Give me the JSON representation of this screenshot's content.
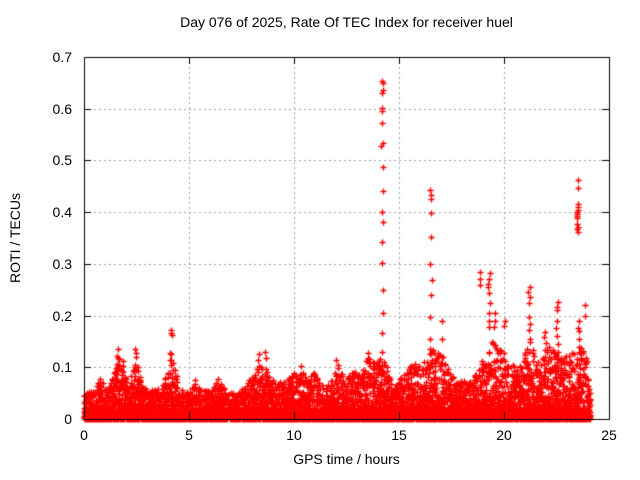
{
  "chart_data": {
    "type": "scatter",
    "title": "Day 076 of 2025, Rate Of TEC Index for receiver huel",
    "xlabel": "GPS time / hours",
    "ylabel": "ROTI / TECUs",
    "xlim": [
      0,
      25
    ],
    "ylim": [
      0,
      0.7
    ],
    "xticks": [
      0,
      5,
      10,
      15,
      20,
      25
    ],
    "yticks": [
      0,
      0.1,
      0.2,
      0.3,
      0.4,
      0.5,
      0.6,
      0.7
    ],
    "grid": true,
    "legend": "none",
    "marker": "plus",
    "marker_color": "#ff0000",
    "axis_color": "#000000",
    "grid_color": "#a5a5a5",
    "background_color": "#ffffff",
    "seed": 76,
    "x_end": 24.1,
    "band_envelope": [
      [
        0,
        0.05
      ],
      [
        0.4,
        0.055
      ],
      [
        0.8,
        0.075
      ],
      [
        1.1,
        0.06
      ],
      [
        1.4,
        0.09
      ],
      [
        1.6,
        0.12
      ],
      [
        1.8,
        0.1
      ],
      [
        2.1,
        0.07
      ],
      [
        2.45,
        0.11
      ],
      [
        2.6,
        0.09
      ],
      [
        2.9,
        0.06
      ],
      [
        3.3,
        0.055
      ],
      [
        3.7,
        0.065
      ],
      [
        4.0,
        0.1
      ],
      [
        4.15,
        0.15
      ],
      [
        4.35,
        0.09
      ],
      [
        4.6,
        0.06
      ],
      [
        5.0,
        0.055
      ],
      [
        5.3,
        0.07
      ],
      [
        5.6,
        0.055
      ],
      [
        6.0,
        0.055
      ],
      [
        6.35,
        0.075
      ],
      [
        6.6,
        0.065
      ],
      [
        7.0,
        0.05
      ],
      [
        7.4,
        0.05
      ],
      [
        7.8,
        0.075
      ],
      [
        8.1,
        0.085
      ],
      [
        8.35,
        0.105
      ],
      [
        8.6,
        0.1
      ],
      [
        8.9,
        0.08
      ],
      [
        9.2,
        0.07
      ],
      [
        9.5,
        0.08
      ],
      [
        9.8,
        0.085
      ],
      [
        10.1,
        0.09
      ],
      [
        10.35,
        0.095
      ],
      [
        10.6,
        0.085
      ],
      [
        10.9,
        0.09
      ],
      [
        11.2,
        0.07
      ],
      [
        11.5,
        0.065
      ],
      [
        11.8,
        0.075
      ],
      [
        12.1,
        0.1
      ],
      [
        12.4,
        0.08
      ],
      [
        12.7,
        0.09
      ],
      [
        13.0,
        0.095
      ],
      [
        13.3,
        0.11
      ],
      [
        13.6,
        0.12
      ],
      [
        13.9,
        0.11
      ],
      [
        14.2,
        0.12
      ],
      [
        14.5,
        0.09
      ],
      [
        14.8,
        0.07
      ],
      [
        15.1,
        0.08
      ],
      [
        15.4,
        0.095
      ],
      [
        15.7,
        0.11
      ],
      [
        16.0,
        0.1
      ],
      [
        16.3,
        0.12
      ],
      [
        16.55,
        0.135
      ],
      [
        16.9,
        0.13
      ],
      [
        17.15,
        0.12
      ],
      [
        17.4,
        0.09
      ],
      [
        17.7,
        0.07
      ],
      [
        18.0,
        0.075
      ],
      [
        18.3,
        0.07
      ],
      [
        18.6,
        0.09
      ],
      [
        18.9,
        0.11
      ],
      [
        19.2,
        0.13
      ],
      [
        19.45,
        0.15
      ],
      [
        19.7,
        0.14
      ],
      [
        20.0,
        0.13
      ],
      [
        20.3,
        0.12
      ],
      [
        20.6,
        0.1
      ],
      [
        20.9,
        0.12
      ],
      [
        21.2,
        0.15
      ],
      [
        21.5,
        0.12
      ],
      [
        21.8,
        0.13
      ],
      [
        22.1,
        0.14
      ],
      [
        22.4,
        0.14
      ],
      [
        22.7,
        0.13
      ],
      [
        23.0,
        0.12
      ],
      [
        23.3,
        0.13
      ],
      [
        23.6,
        0.14
      ],
      [
        23.9,
        0.13
      ],
      [
        24.0,
        0.08
      ],
      [
        24.1,
        0.03
      ]
    ],
    "spikes": [
      {
        "x": 0.8,
        "y": [
          0.078,
          0.072
        ]
      },
      {
        "x": 1.6,
        "y": [
          0.135,
          0.122,
          0.118,
          0.105
        ]
      },
      {
        "x": 1.8,
        "y": [
          0.112,
          0.102
        ]
      },
      {
        "x": 2.45,
        "y": [
          0.135,
          0.128,
          0.12
        ]
      },
      {
        "x": 4.15,
        "y": [
          0.172,
          0.166,
          0.162,
          0.128,
          0.115
        ]
      },
      {
        "x": 5.3,
        "y": [
          0.076
        ]
      },
      {
        "x": 6.35,
        "y": [
          0.078,
          0.07
        ]
      },
      {
        "x": 8.3,
        "y": [
          0.125,
          0.115
        ]
      },
      {
        "x": 8.6,
        "y": [
          0.13,
          0.118
        ]
      },
      {
        "x": 10.35,
        "y": [
          0.102
        ]
      },
      {
        "x": 12.05,
        "y": [
          0.115,
          0.105
        ]
      },
      {
        "x": 13.5,
        "y": [
          0.128,
          0.118
        ]
      },
      {
        "x": 14.2,
        "y": [
          0.654,
          0.65,
          0.637,
          0.63,
          0.601,
          0.596,
          0.572,
          0.533,
          0.528,
          0.487,
          0.441,
          0.401,
          0.38,
          0.343,
          0.302,
          0.25,
          0.205,
          0.166,
          0.13,
          0.105
        ]
      },
      {
        "x": 16.5,
        "y": [
          0.443,
          0.433,
          0.425,
          0.398,
          0.352,
          0.3,
          0.268,
          0.24,
          0.198,
          0.155,
          0.135,
          0.125
        ]
      },
      {
        "x": 17.05,
        "y": [
          0.19,
          0.155
        ]
      },
      {
        "x": 18.85,
        "y": [
          0.285,
          0.27,
          0.26
        ]
      },
      {
        "x": 19.3,
        "y": [
          0.283,
          0.27,
          0.262,
          0.255,
          0.244,
          0.225,
          0.205,
          0.19,
          0.178
        ]
      },
      {
        "x": 19.55,
        "y": [
          0.205,
          0.19,
          0.178
        ]
      },
      {
        "x": 20.0,
        "y": [
          0.19,
          0.18
        ]
      },
      {
        "x": 21.2,
        "y": [
          0.255,
          0.245,
          0.235,
          0.224,
          0.197,
          0.184,
          0.172,
          0.155
        ]
      },
      {
        "x": 21.95,
        "y": [
          0.168,
          0.158,
          0.146,
          0.134
        ]
      },
      {
        "x": 22.5,
        "y": [
          0.227,
          0.216,
          0.21,
          0.19,
          0.176,
          0.16,
          0.145
        ]
      },
      {
        "x": 23.5,
        "y": [
          0.462,
          0.447,
          0.415,
          0.41,
          0.405,
          0.4,
          0.397,
          0.392,
          0.388,
          0.378,
          0.372,
          0.367,
          0.362,
          0.176
        ]
      },
      {
        "x": 23.6,
        "y": [
          0.19,
          0.17,
          0.155,
          0.14,
          0.13
        ]
      },
      {
        "x": 23.85,
        "y": [
          0.22,
          0.2
        ]
      }
    ]
  }
}
